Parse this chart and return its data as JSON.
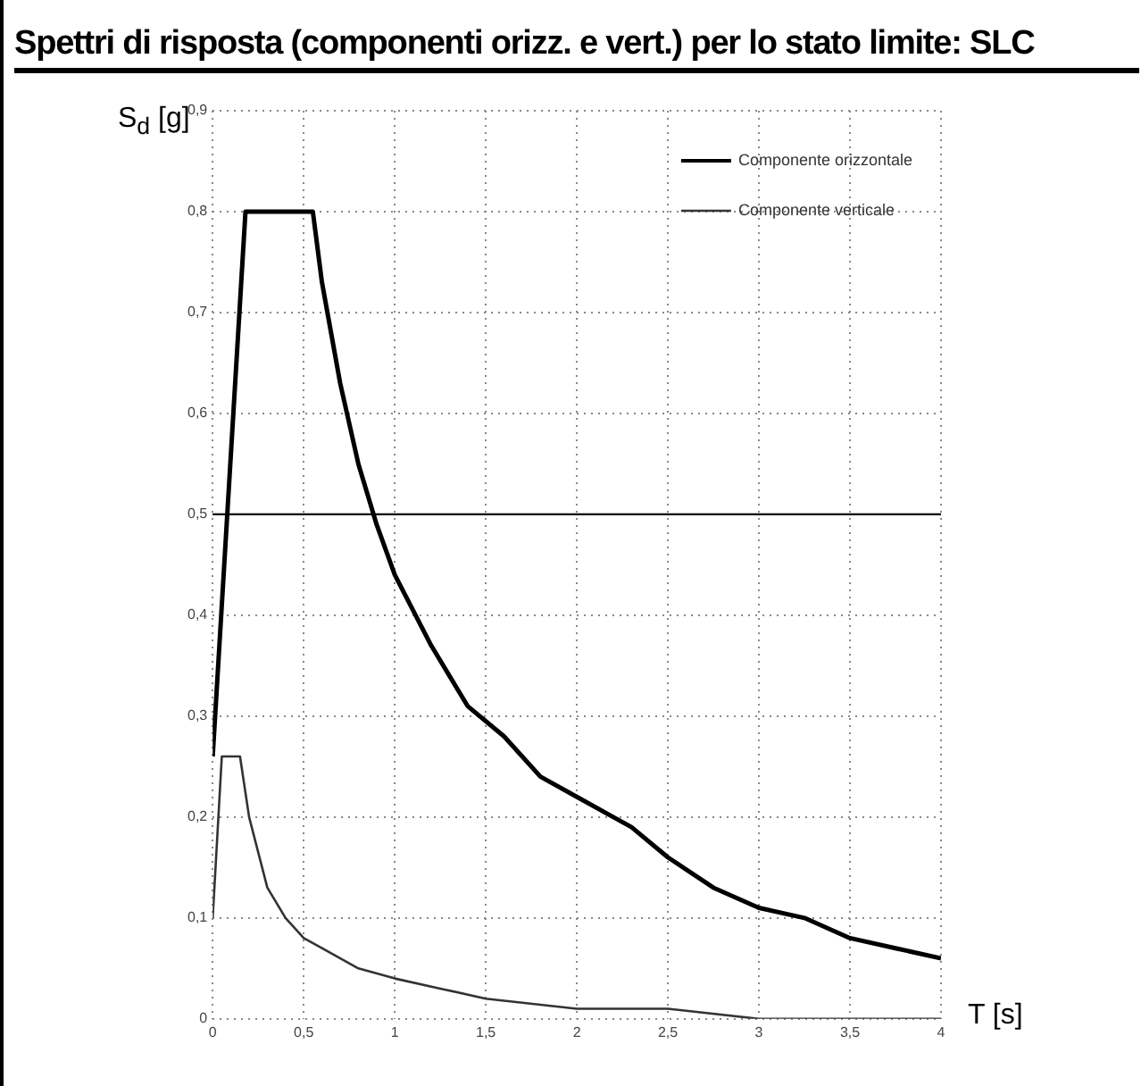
{
  "chart_data": {
    "type": "line",
    "title": "Spettri di risposta (componenti orizz. e vert.) per lo stato limite:     SLC",
    "xlabel": "T [s]",
    "ylabel": "S$_{d}$ [g]",
    "xlim": [
      0,
      4
    ],
    "xticks": [
      0,
      {
        "value": 0.5,
        "label": "0,5"
      },
      1,
      {
        "value": 1.5,
        "label": "1,5"
      },
      2,
      {
        "value": 2.5,
        "label": "2,5"
      },
      3,
      {
        "value": 3.5,
        "label": "3,5"
      },
      4
    ],
    "ylim": [
      0,
      0.9
    ],
    "yticks": [
      0,
      {
        "value": 0.1,
        "label": "0,1"
      },
      {
        "value": 0.2,
        "label": "0,2"
      },
      {
        "value": 0.3,
        "label": "0,3"
      },
      {
        "value": 0.4,
        "label": "0,4"
      },
      {
        "value": 0.5,
        "label": "0,5"
      },
      {
        "value": 0.6,
        "label": "0,6"
      },
      {
        "value": 0.7,
        "label": "0,7"
      },
      {
        "value": 0.8,
        "label": "0,8"
      },
      {
        "value": 0.9,
        "label": "0,9"
      }
    ],
    "grid": true,
    "legend": "top right",
    "marker": "none",
    "line_style": "solid",
    "ref_lines": [
      {
        "axis": "y",
        "value": 0.5,
        "color": "#000000"
      }
    ],
    "series": [
      {
        "name": "Componente orizzontale",
        "color": "#000000",
        "x": [
          0,
          0.18,
          0.55,
          0.6,
          0.7,
          0.8,
          0.9,
          1.0,
          1.2,
          1.4,
          1.6,
          1.8,
          2.0,
          2.2,
          2.3,
          2.5,
          2.75,
          3.0,
          3.25,
          3.5,
          3.75,
          4.0
        ],
        "values": [
          0.26,
          0.8,
          0.8,
          0.73,
          0.63,
          0.55,
          0.49,
          0.44,
          0.37,
          0.31,
          0.28,
          0.24,
          0.22,
          0.2,
          0.19,
          0.16,
          0.13,
          0.11,
          0.1,
          0.08,
          0.07,
          0.06
        ]
      },
      {
        "name": "Componente verticale",
        "color": "#333333",
        "x": [
          0,
          0.05,
          0.15,
          0.2,
          0.3,
          0.4,
          0.5,
          0.6,
          0.8,
          1.0,
          1.25,
          1.5,
          2.0,
          2.5,
          3.0,
          3.5,
          4.0
        ],
        "values": [
          0.1,
          0.26,
          0.26,
          0.2,
          0.13,
          0.1,
          0.08,
          0.07,
          0.05,
          0.04,
          0.03,
          0.02,
          0.01,
          0.01,
          0,
          0,
          0
        ]
      }
    ]
  }
}
